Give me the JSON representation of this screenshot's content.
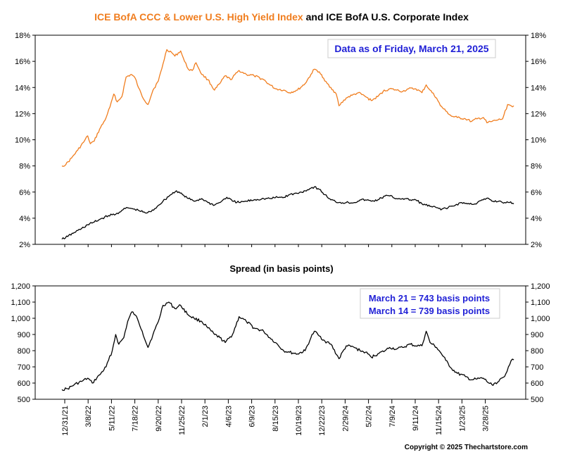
{
  "title": {
    "part1": "ICE BofA CCC & Lower U.S. High Yield Index",
    "part2": " and ICE BofA U.S. Corporate Index",
    "part1_color": "#f07d1e",
    "part2_color": "#000000"
  },
  "top_annotation": "Data as of Friday, March 21, 2025",
  "spread_title": "Spread (in basis points)",
  "spread_annotations": [
    "March 21 = 743 basis points",
    "March 14 = 739 basis points"
  ],
  "annotation_color": "#1f1fd6",
  "copyright": "Copyright © 2025 Thechartstore.com",
  "x_ticks": [
    "12/31/21",
    "3/8/22",
    "5/11/22",
    "7/18/22",
    "9/20/22",
    "11/25/22",
    "2/1/23",
    "4/6/23",
    "6/9/23",
    "8/15/23",
    "10/19/23",
    "12/22/23",
    "2/29/24",
    "5/2/24",
    "7/9/24",
    "9/11/24",
    "11/15/24",
    "1/23/25",
    "3/28/25"
  ],
  "chart_data": [
    {
      "type": "line",
      "x_dates": [
        "2021-12-31",
        "2025-03-21"
      ],
      "ylim": [
        2,
        18
      ],
      "y_ticks": [
        "2%",
        "4%",
        "6%",
        "8%",
        "10%",
        "12%",
        "14%",
        "16%",
        "18%"
      ],
      "series": [
        {
          "name": "ICE BofA CCC & Lower U.S. High Yield Index",
          "color": "#f07d1e",
          "points": [
            [
              "2021-12-31",
              8.0
            ],
            [
              "2022-01-10",
              8.1
            ],
            [
              "2022-01-25",
              8.6
            ],
            [
              "2022-02-10",
              9.2
            ],
            [
              "2022-02-25",
              9.8
            ],
            [
              "2022-03-08",
              10.3
            ],
            [
              "2022-03-15",
              9.7
            ],
            [
              "2022-03-25",
              9.9
            ],
            [
              "2022-04-08",
              10.8
            ],
            [
              "2022-04-22",
              11.5
            ],
            [
              "2022-05-05",
              12.5
            ],
            [
              "2022-05-15",
              13.5
            ],
            [
              "2022-05-24",
              12.9
            ],
            [
              "2022-06-05",
              13.3
            ],
            [
              "2022-06-16",
              14.8
            ],
            [
              "2022-06-30",
              15.0
            ],
            [
              "2022-07-10",
              14.7
            ],
            [
              "2022-07-18",
              14.0
            ],
            [
              "2022-07-28",
              13.3
            ],
            [
              "2022-08-12",
              12.7
            ],
            [
              "2022-08-25",
              13.8
            ],
            [
              "2022-09-08",
              14.5
            ],
            [
              "2022-09-20",
              15.8
            ],
            [
              "2022-09-30",
              16.9
            ],
            [
              "2022-10-12",
              16.7
            ],
            [
              "2022-10-21",
              16.4
            ],
            [
              "2022-11-05",
              16.8
            ],
            [
              "2022-11-15",
              16.0
            ],
            [
              "2022-11-25",
              15.4
            ],
            [
              "2022-12-05",
              15.3
            ],
            [
              "2022-12-15",
              15.9
            ],
            [
              "2022-12-30",
              15.0
            ],
            [
              "2023-01-15",
              14.6
            ],
            [
              "2023-02-01",
              13.8
            ],
            [
              "2023-02-15",
              14.3
            ],
            [
              "2023-03-01",
              14.9
            ],
            [
              "2023-03-15",
              14.6
            ],
            [
              "2023-04-06",
              15.3
            ],
            [
              "2023-04-25",
              15.0
            ],
            [
              "2023-05-15",
              14.9
            ],
            [
              "2023-06-09",
              14.6
            ],
            [
              "2023-06-25",
              14.2
            ],
            [
              "2023-07-10",
              13.9
            ],
            [
              "2023-07-31",
              13.8
            ],
            [
              "2023-08-15",
              13.6
            ],
            [
              "2023-09-05",
              13.8
            ],
            [
              "2023-09-25",
              14.3
            ],
            [
              "2023-10-10",
              15.0
            ],
            [
              "2023-10-19",
              15.4
            ],
            [
              "2023-11-01",
              15.2
            ],
            [
              "2023-11-15",
              14.5
            ],
            [
              "2023-12-01",
              14.0
            ],
            [
              "2023-12-15",
              13.5
            ],
            [
              "2023-12-22",
              12.6
            ],
            [
              "2024-01-10",
              13.2
            ],
            [
              "2024-01-25",
              13.4
            ],
            [
              "2024-02-10",
              13.6
            ],
            [
              "2024-02-29",
              13.3
            ],
            [
              "2024-03-15",
              13.0
            ],
            [
              "2024-04-01",
              13.3
            ],
            [
              "2024-04-15",
              13.7
            ],
            [
              "2024-05-02",
              13.9
            ],
            [
              "2024-05-20",
              13.8
            ],
            [
              "2024-06-05",
              13.7
            ],
            [
              "2024-06-20",
              13.9
            ],
            [
              "2024-07-09",
              13.9
            ],
            [
              "2024-07-25",
              13.6
            ],
            [
              "2024-08-05",
              14.2
            ],
            [
              "2024-08-15",
              13.8
            ],
            [
              "2024-09-01",
              13.2
            ],
            [
              "2024-09-11",
              12.6
            ],
            [
              "2024-09-25",
              12.2
            ],
            [
              "2024-10-10",
              11.8
            ],
            [
              "2024-10-25",
              11.7
            ],
            [
              "2024-11-15",
              11.6
            ],
            [
              "2024-12-01",
              11.4
            ],
            [
              "2024-12-15",
              11.6
            ],
            [
              "2025-01-01",
              11.7
            ],
            [
              "2025-01-10",
              11.3
            ],
            [
              "2025-01-23",
              11.4
            ],
            [
              "2025-02-05",
              11.5
            ],
            [
              "2025-02-20",
              11.6
            ],
            [
              "2025-03-05",
              12.7
            ],
            [
              "2025-03-14",
              12.6
            ],
            [
              "2025-03-21",
              12.6
            ]
          ]
        },
        {
          "name": "ICE BofA U.S. Corporate Index",
          "color": "#000000",
          "points": [
            [
              "2021-12-31",
              2.4
            ],
            [
              "2022-01-15",
              2.6
            ],
            [
              "2022-02-01",
              2.9
            ],
            [
              "2022-02-20",
              3.2
            ],
            [
              "2022-03-08",
              3.5
            ],
            [
              "2022-03-25",
              3.7
            ],
            [
              "2022-04-15",
              4.0
            ],
            [
              "2022-05-01",
              4.2
            ],
            [
              "2022-05-20",
              4.3
            ],
            [
              "2022-06-05",
              4.6
            ],
            [
              "2022-06-20",
              4.8
            ],
            [
              "2022-07-05",
              4.7
            ],
            [
              "2022-07-18",
              4.6
            ],
            [
              "2022-08-05",
              4.4
            ],
            [
              "2022-08-20",
              4.5
            ],
            [
              "2022-09-05",
              4.9
            ],
            [
              "2022-09-20",
              5.3
            ],
            [
              "2022-10-10",
              5.8
            ],
            [
              "2022-10-25",
              6.1
            ],
            [
              "2022-11-10",
              5.8
            ],
            [
              "2022-11-25",
              5.5
            ],
            [
              "2022-12-10",
              5.3
            ],
            [
              "2022-12-30",
              5.5
            ],
            [
              "2023-01-15",
              5.2
            ],
            [
              "2023-02-01",
              5.0
            ],
            [
              "2023-02-20",
              5.3
            ],
            [
              "2023-03-05",
              5.6
            ],
            [
              "2023-03-20",
              5.3
            ],
            [
              "2023-04-06",
              5.2
            ],
            [
              "2023-04-25",
              5.3
            ],
            [
              "2023-05-15",
              5.4
            ],
            [
              "2023-06-09",
              5.5
            ],
            [
              "2023-06-25",
              5.5
            ],
            [
              "2023-07-15",
              5.6
            ],
            [
              "2023-08-01",
              5.6
            ],
            [
              "2023-08-15",
              5.8
            ],
            [
              "2023-09-05",
              5.9
            ],
            [
              "2023-09-25",
              6.1
            ],
            [
              "2023-10-10",
              6.3
            ],
            [
              "2023-10-19",
              6.4
            ],
            [
              "2023-11-01",
              6.2
            ],
            [
              "2023-11-15",
              5.8
            ],
            [
              "2023-12-01",
              5.4
            ],
            [
              "2023-12-22",
              5.2
            ],
            [
              "2024-01-10",
              5.2
            ],
            [
              "2024-01-31",
              5.2
            ],
            [
              "2024-02-15",
              5.4
            ],
            [
              "2024-02-29",
              5.4
            ],
            [
              "2024-03-15",
              5.3
            ],
            [
              "2024-04-01",
              5.4
            ],
            [
              "2024-04-20",
              5.7
            ],
            [
              "2024-05-02",
              5.7
            ],
            [
              "2024-05-20",
              5.5
            ],
            [
              "2024-06-05",
              5.5
            ],
            [
              "2024-06-25",
              5.4
            ],
            [
              "2024-07-09",
              5.4
            ],
            [
              "2024-07-25",
              5.1
            ],
            [
              "2024-08-15",
              4.9
            ],
            [
              "2024-09-01",
              4.8
            ],
            [
              "2024-09-15",
              4.7
            ],
            [
              "2024-10-01",
              4.8
            ],
            [
              "2024-10-20",
              5.0
            ],
            [
              "2024-11-05",
              5.2
            ],
            [
              "2024-11-20",
              5.1
            ],
            [
              "2024-12-10",
              5.1
            ],
            [
              "2024-12-31",
              5.4
            ],
            [
              "2025-01-15",
              5.5
            ],
            [
              "2025-01-23",
              5.3
            ],
            [
              "2025-02-10",
              5.3
            ],
            [
              "2025-02-25",
              5.2
            ],
            [
              "2025-03-10",
              5.2
            ],
            [
              "2025-03-21",
              5.1
            ]
          ]
        }
      ]
    },
    {
      "type": "line",
      "title": "Spread (in basis points)",
      "ylim": [
        500,
        1200
      ],
      "y_ticks": [
        "500",
        "600",
        "700",
        "800",
        "900",
        "1,000",
        "1,100",
        "1,200"
      ],
      "series": [
        {
          "color": "#000000",
          "points": [
            [
              "2021-12-31",
              560
            ],
            [
              "2022-01-15",
              565
            ],
            [
              "2022-02-01",
              590
            ],
            [
              "2022-02-20",
              610
            ],
            [
              "2022-03-08",
              630
            ],
            [
              "2022-03-20",
              600
            ],
            [
              "2022-04-08",
              650
            ],
            [
              "2022-04-25",
              700
            ],
            [
              "2022-05-11",
              800
            ],
            [
              "2022-05-20",
              900
            ],
            [
              "2022-05-28",
              840
            ],
            [
              "2022-06-10",
              880
            ],
            [
              "2022-06-20",
              980
            ],
            [
              "2022-07-01",
              1040
            ],
            [
              "2022-07-10",
              1020
            ],
            [
              "2022-07-18",
              980
            ],
            [
              "2022-07-28",
              920
            ],
            [
              "2022-08-12",
              820
            ],
            [
              "2022-08-25",
              900
            ],
            [
              "2022-09-08",
              980
            ],
            [
              "2022-09-20",
              1080
            ],
            [
              "2022-10-05",
              1100
            ],
            [
              "2022-10-21",
              1060
            ],
            [
              "2022-11-05",
              1080
            ],
            [
              "2022-11-25",
              1020
            ],
            [
              "2022-12-10",
              1000
            ],
            [
              "2022-12-30",
              980
            ],
            [
              "2023-01-15",
              940
            ],
            [
              "2023-02-01",
              900
            ],
            [
              "2023-02-15",
              880
            ],
            [
              "2023-03-01",
              850
            ],
            [
              "2023-03-20",
              900
            ],
            [
              "2023-04-06",
              1010
            ],
            [
              "2023-04-25",
              980
            ],
            [
              "2023-05-15",
              940
            ],
            [
              "2023-06-09",
              920
            ],
            [
              "2023-06-25",
              880
            ],
            [
              "2023-07-10",
              850
            ],
            [
              "2023-07-31",
              800
            ],
            [
              "2023-08-15",
              790
            ],
            [
              "2023-09-05",
              780
            ],
            [
              "2023-09-25",
              800
            ],
            [
              "2023-10-10",
              880
            ],
            [
              "2023-10-19",
              920
            ],
            [
              "2023-11-01",
              890
            ],
            [
              "2023-11-15",
              860
            ],
            [
              "2023-12-01",
              840
            ],
            [
              "2023-12-22",
              750
            ],
            [
              "2024-01-10",
              830
            ],
            [
              "2024-01-31",
              820
            ],
            [
              "2024-02-15",
              800
            ],
            [
              "2024-02-29",
              790
            ],
            [
              "2024-03-15",
              760
            ],
            [
              "2024-04-01",
              780
            ],
            [
              "2024-04-20",
              800
            ],
            [
              "2024-05-02",
              820
            ],
            [
              "2024-05-20",
              810
            ],
            [
              "2024-06-05",
              820
            ],
            [
              "2024-06-25",
              840
            ],
            [
              "2024-07-09",
              830
            ],
            [
              "2024-07-25",
              830
            ],
            [
              "2024-08-05",
              920
            ],
            [
              "2024-08-15",
              850
            ],
            [
              "2024-09-01",
              820
            ],
            [
              "2024-09-11",
              790
            ],
            [
              "2024-09-25",
              740
            ],
            [
              "2024-10-10",
              690
            ],
            [
              "2024-10-25",
              660
            ],
            [
              "2024-11-15",
              640
            ],
            [
              "2024-12-01",
              620
            ],
            [
              "2024-12-15",
              625
            ],
            [
              "2025-01-01",
              630
            ],
            [
              "2025-01-15",
              600
            ],
            [
              "2025-01-23",
              590
            ],
            [
              "2025-02-10",
              610
            ],
            [
              "2025-02-25",
              640
            ],
            [
              "2025-03-07",
              700
            ],
            [
              "2025-03-14",
              739
            ],
            [
              "2025-03-21",
              743
            ]
          ]
        }
      ]
    }
  ]
}
